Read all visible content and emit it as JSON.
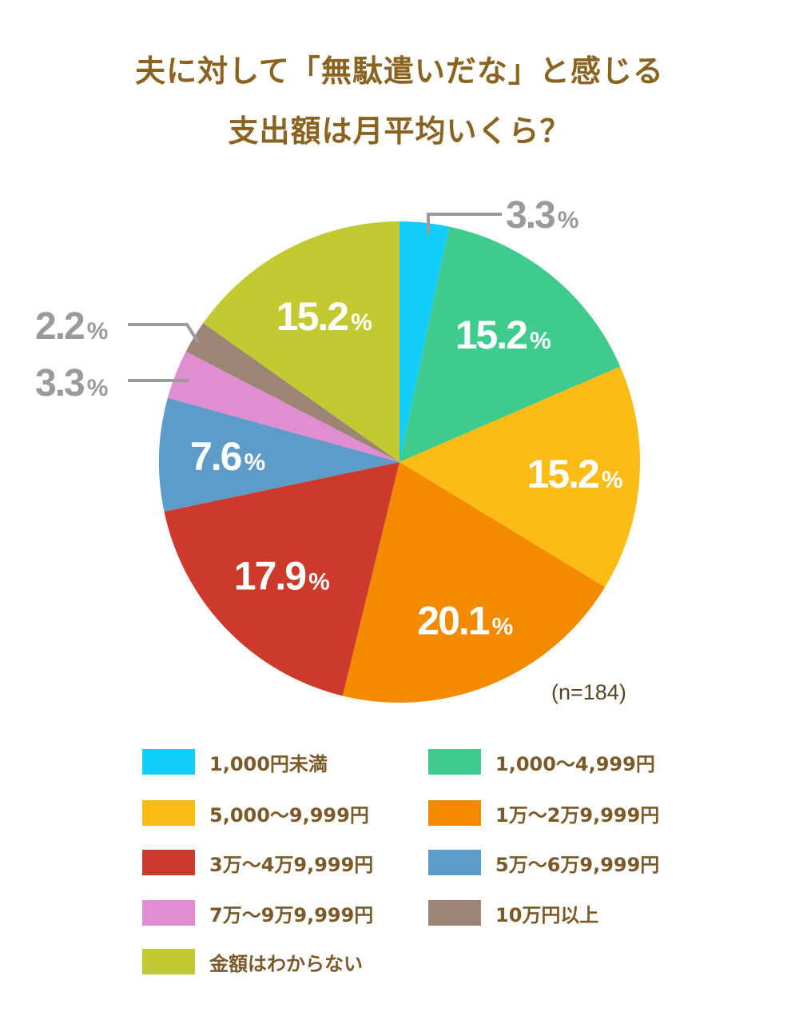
{
  "title_lines": [
    "夫に対して「無駄遣いだな」と感じる",
    "支出額は月平均いくら？"
  ],
  "sample_size": "(n=184)",
  "chart_data": {
    "type": "pie",
    "title": "夫に対して「無駄遣いだな」と感じる支出額は月平均いくら？",
    "unit": "%",
    "slices": [
      {
        "label": "1,000円未満",
        "value": 3.3,
        "value_text": "3.3",
        "color": "#12cdfc"
      },
      {
        "label": "1,000〜4,999円",
        "value": 15.2,
        "value_text": "15.2",
        "color": "#3fcb8e"
      },
      {
        "label": "5,000〜9,999円",
        "value": 15.2,
        "value_text": "15.2",
        "color": "#fdbb15"
      },
      {
        "label": "1万〜2万9,999円",
        "value": 20.1,
        "value_text": "20.1",
        "color": "#f38a00"
      },
      {
        "label": "3万〜4万9,999円",
        "value": 17.9,
        "value_text": "17.9",
        "color": "#cd3a2b"
      },
      {
        "label": "5万〜6万9,999円",
        "value": 7.6,
        "value_text": "7.6",
        "color": "#5d9bc9"
      },
      {
        "label": "7万〜9万9,999円",
        "value": 3.3,
        "value_text": "3.3",
        "color": "#e08ed1"
      },
      {
        "label": "10万円以上",
        "value": 2.2,
        "value_text": "2.2",
        "color": "#9c8574"
      },
      {
        "label": "金額はわからない",
        "value": 15.2,
        "value_text": "15.2",
        "color": "#c2c931"
      }
    ],
    "legend_placement": "bottom, two columns"
  }
}
